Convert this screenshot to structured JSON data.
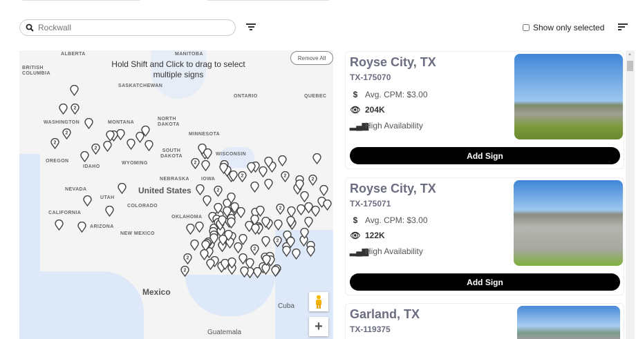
{
  "search": {
    "placeholder": "Rockwall",
    "value": ""
  },
  "filters": {
    "show_only_selected": "Show only selected",
    "show_only_selected_checked": false
  },
  "map": {
    "hint": "Hold Shift and Click to drag to select multiple signs",
    "remove_all": "Remove All",
    "labels": {
      "alberta": "ALBERTA",
      "manitoba": "MANITOBA",
      "british_columbia": "BRITISH COLUMBIA",
      "saskatchewan": "SASKATCHEWAN",
      "ontario": "ONTARIO",
      "quebec": "QUEBEC",
      "washington": "WASHINGTON",
      "montana": "MONTANA",
      "north_dakota": "NORTH DAKOTA",
      "minnesota": "MINNESOTA",
      "south_dakota": "SOUTH DAKOTA",
      "wisconsin": "WISCONSIN",
      "oregon": "OREGON",
      "idaho": "IDAHO",
      "wyoming": "WYOMING",
      "nebraska": "NEBRASKA",
      "iowa": "IOWA",
      "nevada": "NEVADA",
      "utah": "UTAH",
      "colorado": "COLORADO",
      "united_states": "United States",
      "california": "CALIFORNIA",
      "arizona": "ARIZONA",
      "new_mexico": "NEW MEXICO",
      "oklahoma": "OKLAHOMA",
      "mexico": "Mexico",
      "cuba": "Cuba",
      "guatemala": "Guatemala"
    },
    "cluster_label": "2",
    "zoom_in": "+"
  },
  "listings": [
    {
      "city": "Royse City, TX",
      "code": "TX-175070",
      "cpm": "Avg. CPM: $3.00",
      "impressions": "204K",
      "availability": "High Availability",
      "button": "Add Sign"
    },
    {
      "city": "Royse City, TX",
      "code": "TX-175071",
      "cpm": "Avg. CPM: $3.00",
      "impressions": "122K",
      "availability": "High Availability",
      "button": "Add Sign"
    },
    {
      "city": "Garland, TX",
      "code": "TX-119375"
    }
  ]
}
